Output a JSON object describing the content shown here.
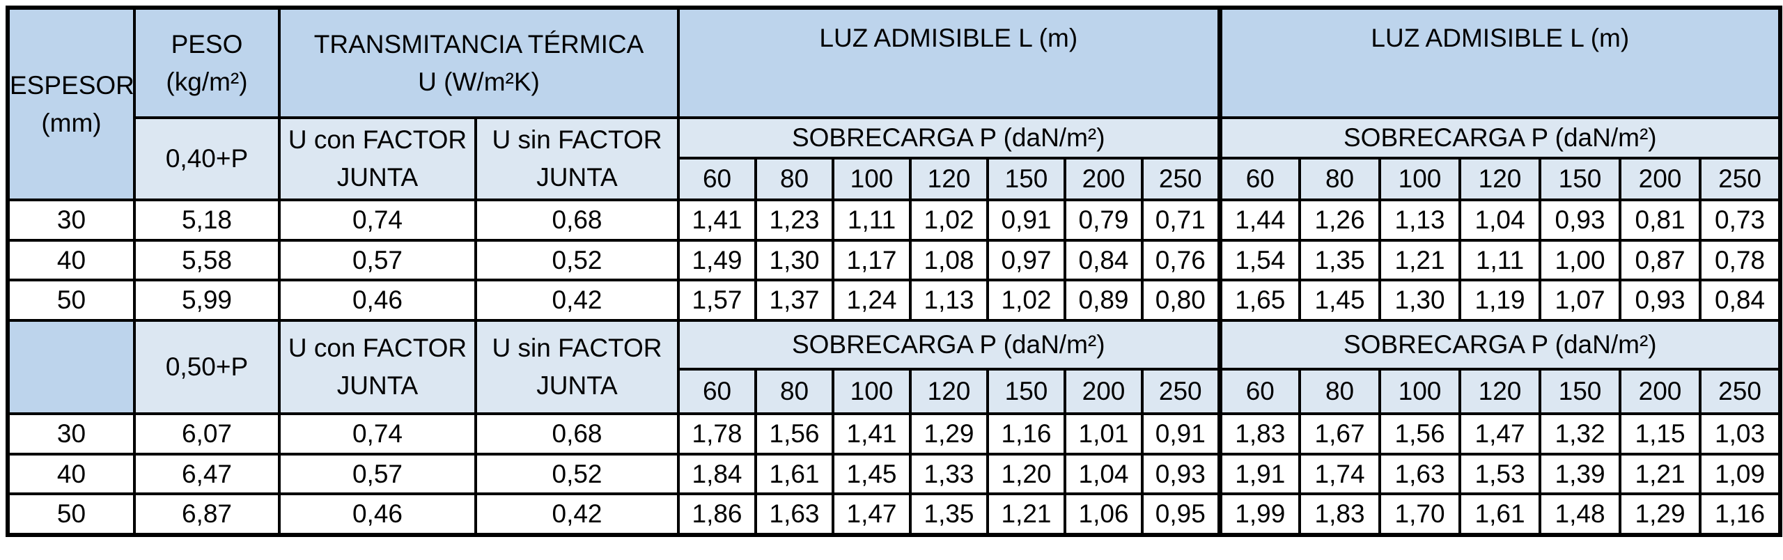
{
  "colors": {
    "header_dark_blue": "#bdd4ec",
    "header_light_blue": "#dce7f2",
    "border_black": "#000000",
    "cell_white": "#ffffff"
  },
  "table": {
    "header": {
      "espesor": "ESPESOR\n(mm)",
      "peso": "PESO\n(kg/m²)",
      "transmitancia": "TRANSMITANCIA TÉRMICA\nU (W/m²K)",
      "luz": "LUZ ADMISIBLE L (m)",
      "sobrecarga": "SOBRECARGA P (daN/m²)",
      "u_con": "U con FACTOR\nJUNTA",
      "u_sin": "U sin FACTOR\nJUNTA",
      "loads": [
        "60",
        "80",
        "100",
        "120",
        "150",
        "200",
        "250"
      ]
    },
    "sections": [
      {
        "peso_label": "0,40+P",
        "rows": [
          {
            "espesor": "30",
            "peso": "5,18",
            "u_con": "0,74",
            "u_sin": "0,68",
            "luz1": [
              "1,41",
              "1,23",
              "1,11",
              "1,02",
              "0,91",
              "0,79",
              "0,71"
            ],
            "luz2": [
              "1,44",
              "1,26",
              "1,13",
              "1,04",
              "0,93",
              "0,81",
              "0,73"
            ]
          },
          {
            "espesor": "40",
            "peso": "5,58",
            "u_con": "0,57",
            "u_sin": "0,52",
            "luz1": [
              "1,49",
              "1,30",
              "1,17",
              "1,08",
              "0,97",
              "0,84",
              "0,76"
            ],
            "luz2": [
              "1,54",
              "1,35",
              "1,21",
              "1,11",
              "1,00",
              "0,87",
              "0,78"
            ]
          },
          {
            "espesor": "50",
            "peso": "5,99",
            "u_con": "0,46",
            "u_sin": "0,42",
            "luz1": [
              "1,57",
              "1,37",
              "1,24",
              "1,13",
              "1,02",
              "0,89",
              "0,80"
            ],
            "luz2": [
              "1,65",
              "1,45",
              "1,30",
              "1,19",
              "1,07",
              "0,93",
              "0,84"
            ]
          }
        ]
      },
      {
        "peso_label": "0,50+P",
        "rows": [
          {
            "espesor": "30",
            "peso": "6,07",
            "u_con": "0,74",
            "u_sin": "0,68",
            "luz1": [
              "1,78",
              "1,56",
              "1,41",
              "1,29",
              "1,16",
              "1,01",
              "0,91"
            ],
            "luz2": [
              "1,83",
              "1,67",
              "1,56",
              "1,47",
              "1,32",
              "1,15",
              "1,03"
            ]
          },
          {
            "espesor": "40",
            "peso": "6,47",
            "u_con": "0,57",
            "u_sin": "0,52",
            "luz1": [
              "1,84",
              "1,61",
              "1,45",
              "1,33",
              "1,20",
              "1,04",
              "0,93"
            ],
            "luz2": [
              "1,91",
              "1,74",
              "1,63",
              "1,53",
              "1,39",
              "1,21",
              "1,09"
            ]
          },
          {
            "espesor": "50",
            "peso": "6,87",
            "u_con": "0,46",
            "u_sin": "0,42",
            "luz1": [
              "1,86",
              "1,63",
              "1,47",
              "1,35",
              "1,21",
              "1,06",
              "0,95"
            ],
            "luz2": [
              "1,99",
              "1,83",
              "1,70",
              "1,61",
              "1,48",
              "1,29",
              "1,16"
            ]
          }
        ]
      }
    ]
  }
}
